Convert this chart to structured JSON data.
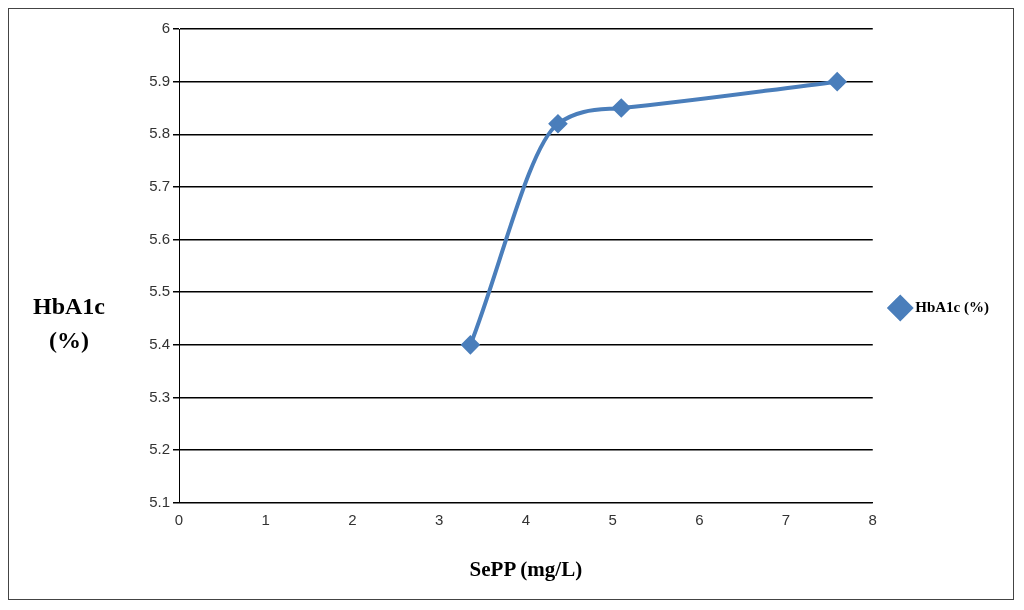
{
  "chart_data": {
    "type": "line",
    "xlabel": "SePP (mg/L)",
    "ylabel": "HbA1c (%)",
    "x": [
      3.36,
      4.37,
      5.1,
      7.59
    ],
    "series": [
      {
        "name": "HbA1c (%)",
        "color": "#4a7ebb",
        "values": [
          5.4,
          5.82,
          5.85,
          5.9
        ]
      }
    ],
    "xlim": [
      0,
      8
    ],
    "xticks": [
      0,
      1,
      2,
      3,
      4,
      5,
      6,
      7,
      8
    ],
    "ylim": [
      5.1,
      6
    ],
    "yticks": [
      5.1,
      5.2,
      5.3,
      5.4,
      5.5,
      5.6,
      5.7,
      5.8,
      5.9,
      6
    ],
    "grid": "y",
    "legend": "right",
    "marker": "diamond"
  }
}
